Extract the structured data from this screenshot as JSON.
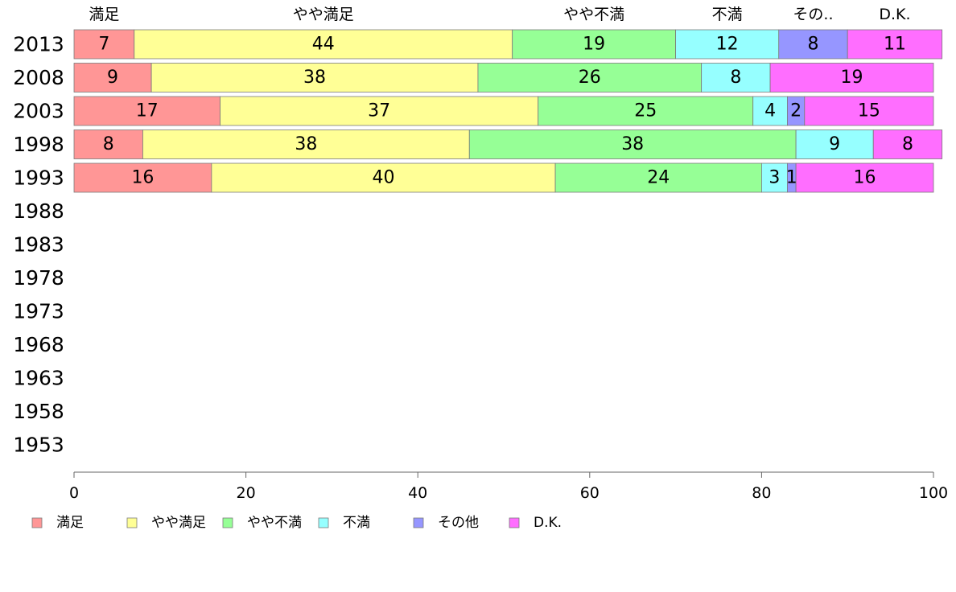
{
  "chart_data": {
    "type": "bar",
    "orientation": "horizontal",
    "stacked": true,
    "categories": [
      "2013",
      "2008",
      "2003",
      "1998",
      "1993",
      "1988",
      "1983",
      "1978",
      "1973",
      "1968",
      "1963",
      "1958",
      "1953"
    ],
    "series": [
      {
        "name": "満足",
        "color": "#ff9696",
        "values": [
          7,
          9,
          17,
          8,
          16,
          null,
          null,
          null,
          null,
          null,
          null,
          null,
          null
        ]
      },
      {
        "name": "やや満足",
        "color": "#ffff96",
        "values": [
          44,
          38,
          37,
          38,
          40,
          null,
          null,
          null,
          null,
          null,
          null,
          null,
          null
        ]
      },
      {
        "name": "やや不満",
        "color": "#96ff96",
        "values": [
          19,
          26,
          25,
          38,
          24,
          null,
          null,
          null,
          null,
          null,
          null,
          null,
          null
        ]
      },
      {
        "name": "不満",
        "color": "#96ffff",
        "values": [
          12,
          8,
          4,
          9,
          3,
          null,
          null,
          null,
          null,
          null,
          null,
          null,
          null
        ]
      },
      {
        "name": "その他",
        "color": "#9696ff",
        "values": [
          8,
          0,
          2,
          0,
          1,
          null,
          null,
          null,
          null,
          null,
          null,
          null,
          null
        ]
      },
      {
        "name": "D.K.",
        "color": "#ff6eff",
        "values": [
          11,
          19,
          15,
          8,
          16,
          null,
          null,
          null,
          null,
          null,
          null,
          null,
          null
        ]
      }
    ],
    "top_labels": [
      "満足",
      "やや満足",
      "やや不満",
      "不満",
      "その..",
      "D.K."
    ],
    "xlim": [
      0,
      100
    ],
    "xticks": [
      "0",
      "20",
      "40",
      "60",
      "80",
      "100"
    ],
    "legend_position": "bottom-left",
    "grid": false
  }
}
